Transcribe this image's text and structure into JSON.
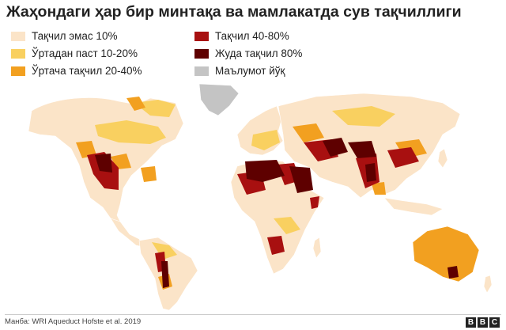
{
  "title": "Жаҳондаги ҳар бир минтақа ва мамлакатда сув тақчиллиги",
  "legend": [
    {
      "label": "Тақчил эмас 10%",
      "color": "#fbe4c8"
    },
    {
      "label": "Ўртадан паст 10-20%",
      "color": "#f9d060"
    },
    {
      "label": "Ўртача тақчил 20-40%",
      "color": "#f2a020"
    },
    {
      "label": " Тақчил 40-80%",
      "color": "#a81010"
    },
    {
      "label": "Жуда тақчил 80%",
      "color": "#5e0000"
    },
    {
      "label": "Маълумот йўқ",
      "color": "#c4c4c4"
    }
  ],
  "source": "Манба: WRI Aqueduct Hofste et al. 2019",
  "brand": {
    "letters": [
      "B",
      "B",
      "C"
    ]
  }
}
